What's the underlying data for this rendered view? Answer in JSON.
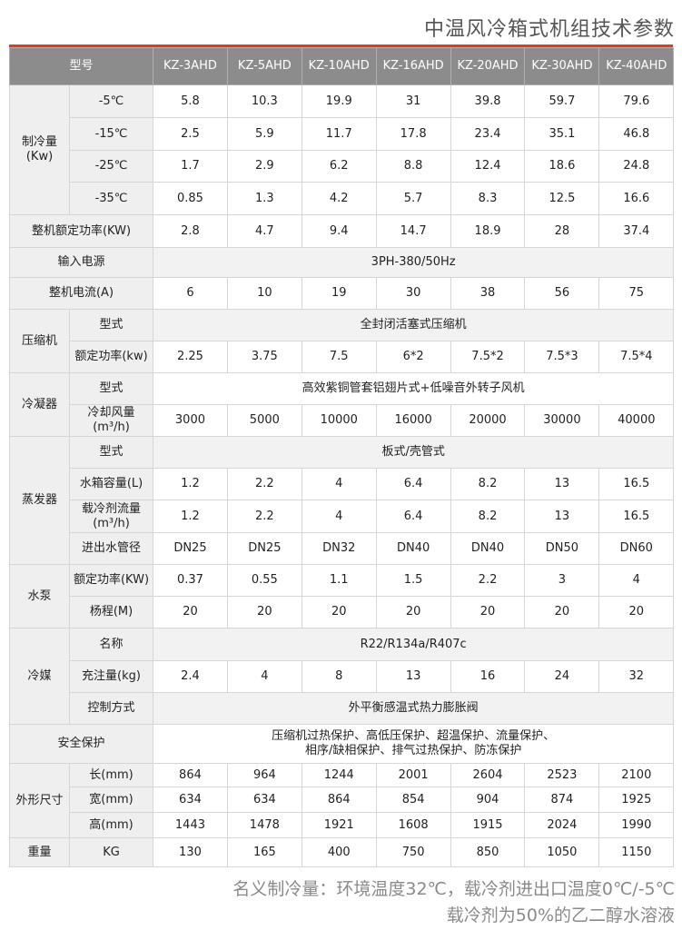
{
  "title": "中温风冷箱式机组技术参数",
  "header": {
    "label": "型号",
    "models": [
      "KZ-3AHD",
      "KZ-5AHD",
      "KZ-10AHD",
      "KZ-16AHD",
      "KZ-20AHD",
      "KZ-30AHD",
      "KZ-40AHD"
    ]
  },
  "rows": [
    {
      "group": "制冷量(Kw)",
      "span": 4,
      "sub": "-5℃",
      "values": [
        "5.8",
        "10.3",
        "19.9",
        "31",
        "39.8",
        "59.7",
        "79.6"
      ],
      "h": 36
    },
    {
      "sub": "-15℃",
      "values": [
        "2.5",
        "5.9",
        "11.7",
        "17.8",
        "23.4",
        "35.1",
        "46.8"
      ],
      "h": 36
    },
    {
      "sub": "-25℃",
      "values": [
        "1.7",
        "2.9",
        "6.2",
        "8.8",
        "12.4",
        "18.6",
        "24.8"
      ],
      "h": 35
    },
    {
      "sub": "-35℃",
      "values": [
        "0.85",
        "1.3",
        "4.2",
        "5.7",
        "8.3",
        "12.5",
        "16.6"
      ],
      "h": 36
    },
    {
      "full": "整机额定功率(KW)",
      "values": [
        "2.8",
        "4.7",
        "9.4",
        "14.7",
        "18.9",
        "28",
        "37.4"
      ],
      "h": 36
    },
    {
      "full": "输入电源",
      "merged": "3PH-380/50Hz",
      "h": 33,
      "shade": true
    },
    {
      "full": "整机电流(A)",
      "values": [
        "6",
        "10",
        "19",
        "30",
        "38",
        "56",
        "75"
      ],
      "h": 35
    },
    {
      "group": "压缩机",
      "span": 2,
      "sub": "型式",
      "merged": "全封闭活塞式压缩机",
      "h": 35,
      "shade": true
    },
    {
      "sub": "额定功率(kw)",
      "values": [
        "2.25",
        "3.75",
        "7.5",
        "6*2",
        "7.5*2",
        "7.5*3",
        "7.5*4"
      ],
      "h": 35
    },
    {
      "group": "冷凝器",
      "span": 2,
      "sub": "型式",
      "merged": "高效紫铜管套铝翅片式+低噪音外转子风机",
      "h": 35
    },
    {
      "sub": "冷却风量(m³/h)",
      "values": [
        "3000",
        "5000",
        "10000",
        "16000",
        "20000",
        "30000",
        "40000"
      ],
      "h": 35
    },
    {
      "group": "蒸发器",
      "span": 4,
      "sub": "型式",
      "merged": "板式/壳管式",
      "h": 35,
      "shade": true
    },
    {
      "sub": "水箱容量(L)",
      "values": [
        "1.2",
        "2.2",
        "4",
        "6.4",
        "8.2",
        "13",
        "16.5"
      ],
      "h": 35
    },
    {
      "sub": "载冷剂流量(m³/h)",
      "values": [
        "1.2",
        "2.2",
        "4",
        "6.4",
        "8.2",
        "13",
        "16.5"
      ],
      "h": 36
    },
    {
      "sub": "进出水管径",
      "values": [
        "DN25",
        "DN25",
        "DN32",
        "DN40",
        "DN40",
        "DN50",
        "DN60"
      ],
      "h": 35
    },
    {
      "group": "水泵",
      "span": 2,
      "sub": "额定功率(KW)",
      "values": [
        "0.37",
        "0.55",
        "1.1",
        "1.5",
        "2.2",
        "3",
        "4"
      ],
      "h": 35
    },
    {
      "sub": "杨程(M)",
      "values": [
        "20",
        "20",
        "20",
        "20",
        "20",
        "20",
        "20"
      ],
      "h": 35
    },
    {
      "group": "冷媒",
      "span": 3,
      "sub": "名称",
      "merged": "R22/R134a/R407c",
      "h": 36,
      "shade": true
    },
    {
      "sub": "充注量(kg)",
      "values": [
        "2.4",
        "4",
        "8",
        "13",
        "16",
        "24",
        "32"
      ],
      "h": 35
    },
    {
      "sub": "控制方式",
      "merged": "外平衡感温式热力膨胀阀",
      "h": 35,
      "shade": true
    },
    {
      "full": "安全保护",
      "merged": "压缩机过热保护、高低压保护、超温保护、流量保护、\n相序/缺相保护、排气过热保护、防冻保护",
      "h": 43
    },
    {
      "group": "外形尺寸",
      "span": 3,
      "sub": "长(mm)",
      "values": [
        "864",
        "964",
        "1244",
        "2001",
        "2604",
        "2523",
        "2100"
      ],
      "h": 26
    },
    {
      "sub": "宽(mm)",
      "values": [
        "634",
        "634",
        "864",
        "854",
        "904",
        "874",
        "1925"
      ],
      "h": 28
    },
    {
      "sub": "高(mm)",
      "values": [
        "1443",
        "1478",
        "1921",
        "1608",
        "1915",
        "2024",
        "1990"
      ],
      "h": 28
    },
    {
      "group": "重量",
      "span": 1,
      "sub": "KG",
      "values": [
        "130",
        "165",
        "400",
        "750",
        "850",
        "1050",
        "1150"
      ],
      "h": 32
    }
  ],
  "footer": [
    "名义制冷量：环境温度32℃，载冷剂进出口温度0℃/-5℃",
    "载冷剂为50%的乙二醇水溶液"
  ]
}
